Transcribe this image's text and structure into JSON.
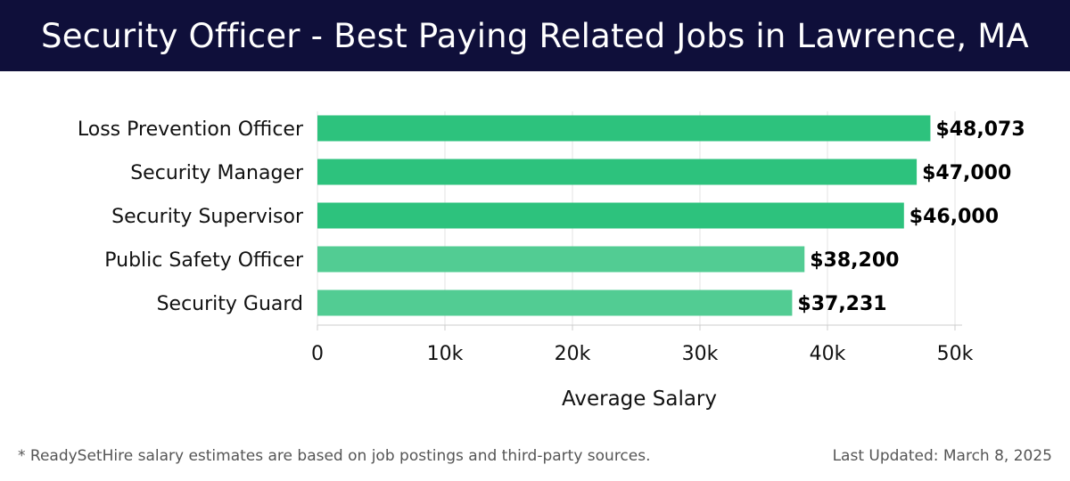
{
  "header": {
    "title": "Security Officer - Best Paying Related Jobs in Lawrence, MA"
  },
  "chart_data": {
    "type": "bar",
    "orientation": "horizontal",
    "title": "Security Officer - Best Paying Related Jobs in Lawrence, MA",
    "xlabel": "Average Salary",
    "ylabel": "",
    "xlim": [
      0,
      50000
    ],
    "xticks": [
      0,
      10000,
      20000,
      30000,
      40000,
      50000
    ],
    "xtick_labels": [
      "0",
      "10k",
      "20k",
      "30k",
      "40k",
      "50k"
    ],
    "grid": "vertical",
    "categories": [
      "Loss Prevention Officer",
      "Security Manager",
      "Security Supervisor",
      "Public Safety Officer",
      "Security Guard"
    ],
    "values": [
      48073,
      47000,
      46000,
      38200,
      37231
    ],
    "value_labels": [
      "$48,073",
      "$47,000",
      "$46,000",
      "$38,200",
      "$37,231"
    ],
    "bar_colors": [
      "#2dc27d",
      "#2dc27d",
      "#2dc27d",
      "#52cc93",
      "#52cc93"
    ]
  },
  "footer": {
    "note": "* ReadySetHire salary estimates are based on job postings and third-party sources.",
    "updated": "Last Updated: March 8, 2025"
  },
  "colors": {
    "header_bg": "#0f0f3a",
    "grid": "#e3e3e3",
    "axis": "#cccccc"
  }
}
